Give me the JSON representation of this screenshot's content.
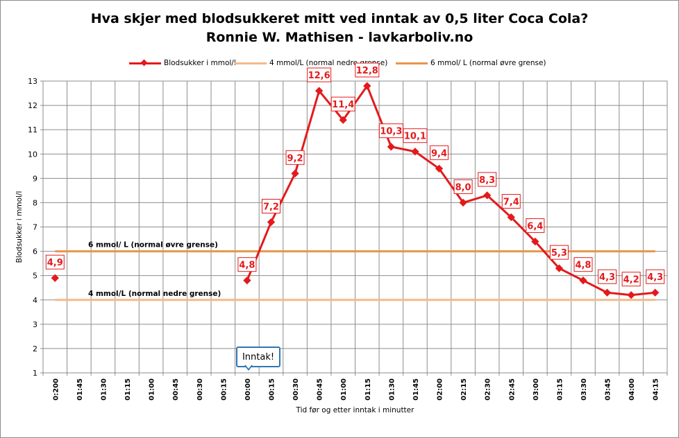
{
  "chart_data": {
    "type": "line",
    "title": "Hva skjer med blodsukkeret mitt ved inntak av 0,5 liter Coca Cola?",
    "subtitle": "Ronnie W. Mathisen - lavkarboliv.no",
    "xlabel": "Tid før og etter  inntak i minutter",
    "ylabel": "Blodsukker i mmol/l",
    "ylim": [
      1,
      13
    ],
    "yticks": [
      "1",
      "2",
      "3",
      "4",
      "5",
      "6",
      "7",
      "8",
      "9",
      "10",
      "11",
      "12",
      "13"
    ],
    "grid": true,
    "legend_position": "top",
    "categories": [
      "0:200",
      "01:45",
      "01:30",
      "01:15",
      "01:00",
      "00:45",
      "00:30",
      "00:15",
      "00:00",
      "00:15",
      "00:30",
      "00:45",
      "01:00",
      "01:15",
      "01:30",
      "01:45",
      "02:00",
      "02:15",
      "02:30",
      "02:45",
      "03:00",
      "03:15",
      "03:30",
      "03:45",
      "04:00",
      "04:15"
    ],
    "series": [
      {
        "name": "Blodsukker i mmol/l",
        "color": "#e31a1c",
        "values": [
          4.9,
          null,
          null,
          null,
          null,
          null,
          null,
          null,
          4.8,
          7.2,
          9.2,
          12.6,
          11.4,
          12.8,
          10.3,
          10.1,
          9.4,
          8.0,
          8.3,
          7.4,
          6.4,
          5.3,
          4.8,
          4.3,
          4.2,
          4.3
        ],
        "labels": [
          "4,9",
          null,
          null,
          null,
          null,
          null,
          null,
          null,
          "4,8",
          "7,2",
          "9,2",
          "12,6",
          "11,4",
          "12,8",
          "10,3",
          "10,1",
          "9,4",
          "8,0",
          "8,3",
          "7,4",
          "6,4",
          "5,3",
          "4,8",
          "4,3",
          "4,2",
          "4,3"
        ]
      },
      {
        "name": "4 mmol/L (normal nedre grense)",
        "color": "#f4b98a",
        "value": 4
      },
      {
        "name": "6 mmol/ L (normal øvre grense)",
        "color": "#e8954a",
        "value": 6
      }
    ],
    "reference_labels": {
      "upper": "6 mmol/ L (normal øvre grense)",
      "lower": "4 mmol/L (normal nedre grense)"
    },
    "annotation": {
      "text": "Inntak!"
    }
  }
}
